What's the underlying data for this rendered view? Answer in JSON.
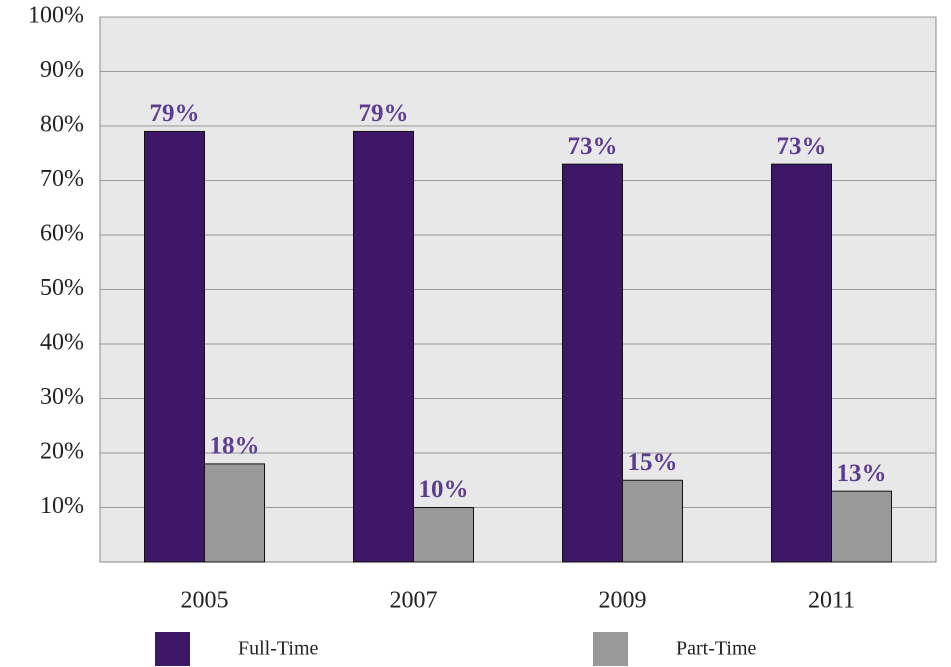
{
  "chart_data": {
    "type": "bar",
    "categories": [
      "2005",
      "2007",
      "2009",
      "2011"
    ],
    "series": [
      {
        "name": "Full-Time",
        "color": "#3f1769",
        "values": [
          79,
          79,
          73,
          73
        ],
        "value_labels": [
          "79%",
          "79%",
          "73%",
          "73%"
        ]
      },
      {
        "name": "Part-Time",
        "color": "#999999",
        "values": [
          18,
          10,
          15,
          13
        ],
        "value_labels": [
          "18%",
          "10%",
          "15%",
          "13%"
        ]
      }
    ],
    "value_label_color": "#5c3d8f",
    "ylim": [
      0,
      100
    ],
    "yticks": [
      {
        "value": 10,
        "label": "10%"
      },
      {
        "value": 20,
        "label": "20%"
      },
      {
        "value": 30,
        "label": "30%"
      },
      {
        "value": 40,
        "label": "40%"
      },
      {
        "value": 50,
        "label": "50%"
      },
      {
        "value": 60,
        "label": "60%"
      },
      {
        "value": 70,
        "label": "70%"
      },
      {
        "value": 80,
        "label": "80%"
      },
      {
        "value": 90,
        "label": "90%"
      },
      {
        "value": 100,
        "label": "100%"
      }
    ],
    "grid": true
  }
}
